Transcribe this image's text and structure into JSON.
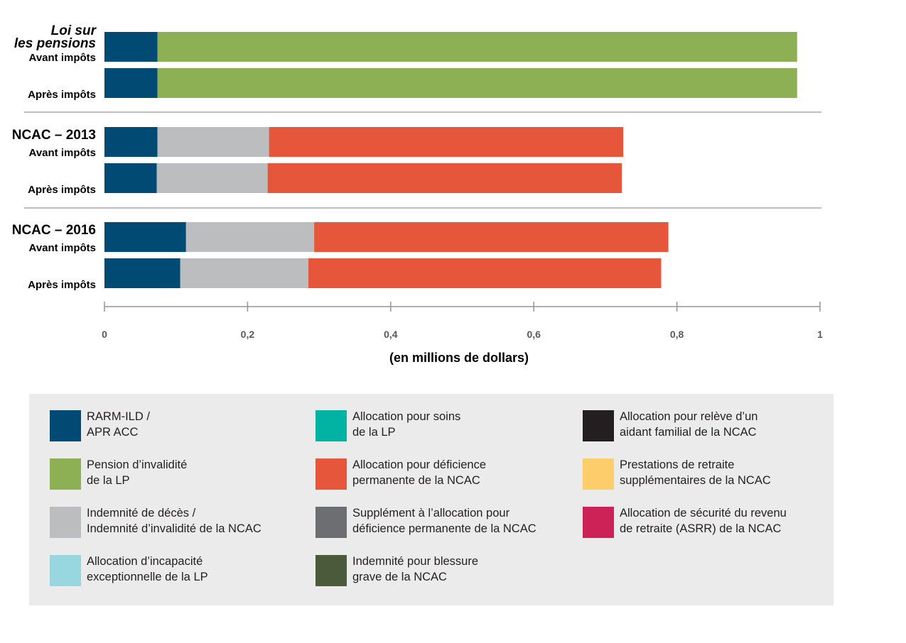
{
  "chart_data": {
    "type": "bar",
    "orientation": "horizontal",
    "stacked": true,
    "xlabel": "(en millions de dollars)",
    "xlim": [
      0,
      1
    ],
    "xticks": [
      "0",
      "0,2",
      "0,4",
      "0,6",
      "0,8",
      "1"
    ],
    "groups": [
      {
        "title_lines": [
          "Loi sur",
          "les pensions"
        ],
        "italic": true,
        "rows": [
          {
            "label": "Avant impôts",
            "segments": [
              {
                "series": "RARM-ILD / APR ACC",
                "value": 0.074
              },
              {
                "series": "Pension d’invalidité de la LP",
                "value": 0.894
              }
            ]
          },
          {
            "label": "Après impôts",
            "segments": [
              {
                "series": "RARM-ILD / APR ACC",
                "value": 0.074
              },
              {
                "series": "Pension d’invalidité de la LP",
                "value": 0.894
              }
            ]
          }
        ]
      },
      {
        "title_lines": [
          "NCAC – 2013"
        ],
        "italic": false,
        "rows": [
          {
            "label": "Avant impôts",
            "segments": [
              {
                "series": "RARM-ILD / APR ACC",
                "value": 0.074
              },
              {
                "series": "Indemnité de décès / Indemnité d’invalidité de la NCAC",
                "value": 0.156
              },
              {
                "series": "Allocation pour déficience permanente de la NCAC",
                "value": 0.495
              }
            ]
          },
          {
            "label": "Après impôts",
            "segments": [
              {
                "series": "RARM-ILD / APR ACC",
                "value": 0.073
              },
              {
                "series": "Indemnité de décès / Indemnité d’invalidité de la NCAC",
                "value": 0.155
              },
              {
                "series": "Allocation pour déficience permanente de la NCAC",
                "value": 0.495
              }
            ]
          }
        ]
      },
      {
        "title_lines": [
          "NCAC – 2016"
        ],
        "italic": false,
        "rows": [
          {
            "label": "Avant impôts",
            "segments": [
              {
                "series": "RARM-ILD / APR ACC",
                "value": 0.114
              },
              {
                "series": "Indemnité de décès / Indemnité d’invalidité de la NCAC",
                "value": 0.179
              },
              {
                "series": "Allocation pour déficience permanente de la NCAC",
                "value": 0.495
              }
            ]
          },
          {
            "label": "Après impôts",
            "segments": [
              {
                "series": "RARM-ILD / APR ACC",
                "value": 0.106
              },
              {
                "series": "Indemnité de décès / Indemnité d’invalidité de la NCAC",
                "value": 0.179
              },
              {
                "series": "Allocation pour déficience permanente de la NCAC",
                "value": 0.493
              }
            ]
          }
        ]
      }
    ],
    "legend": [
      {
        "lines": [
          "RARM-ILD /",
          "APR ACC"
        ],
        "color": "#004a74"
      },
      {
        "lines": [
          "Pension d’invalidité",
          "de la LP"
        ],
        "color": "#8db055"
      },
      {
        "lines": [
          "Indemnité de décès /",
          "Indemnité d’invalidité de la NCAC"
        ],
        "color": "#bcbdbf"
      },
      {
        "lines": [
          "Allocation d’incapacité",
          "exceptionnelle de la LP"
        ],
        "color": "#98d6e0"
      },
      {
        "lines": [
          "Allocation pour soins",
          "de la LP"
        ],
        "color": "#00b3a3"
      },
      {
        "lines": [
          "Allocation pour déficience",
          "permanente de la NCAC"
        ],
        "color": "#e5563a"
      },
      {
        "lines": [
          "Supplément à l’allocation pour",
          "déficience permanente de la NCAC"
        ],
        "color": "#6d6e71"
      },
      {
        "lines": [
          "Indemnité pour blessure",
          "grave de la NCAC"
        ],
        "color": "#4a5a3b"
      },
      {
        "lines": [
          "Allocation pour relève d’un",
          "aidant familial de la NCAC"
        ],
        "color": "#231f20"
      },
      {
        "lines": [
          "Prestations de retraite",
          "supplémentaires de la NCAC"
        ],
        "color": "#fdcc6b"
      },
      {
        "lines": [
          "Allocation de sécurité du revenu",
          "de retraite (ASRR) de la NCAC"
        ],
        "color": "#cc2257"
      }
    ],
    "legend_placement": "bottom",
    "grid": false
  }
}
